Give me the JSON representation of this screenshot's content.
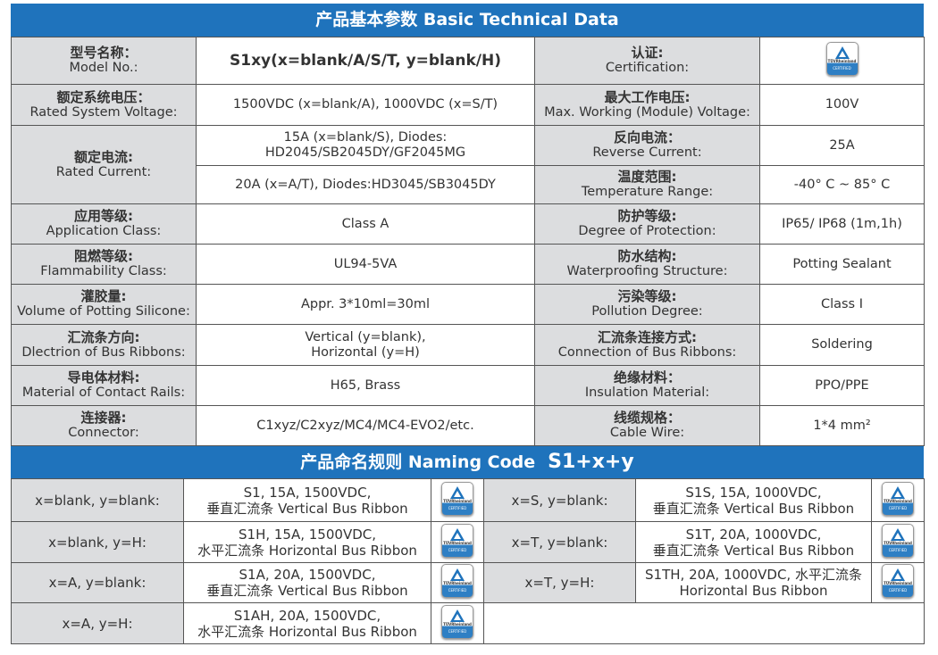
{
  "basic": {
    "title": "产品基本参数 Basic Technical Data",
    "rows": [
      {
        "l1_cn": "型号名称：",
        "l1_en": "Model No.:",
        "v1": "S1xy(x=blank/A/S/T, y=blank/H)",
        "l2_cn": "认证:",
        "l2_en": "Certification:",
        "v2": ""
      },
      {
        "l1_cn": "额定系统电压：",
        "l1_en": "Rated System Voltage:",
        "v1": "1500VDC (x=blank/A), 1000VDC (x=S/T)",
        "l2_cn": "最大工作电压:",
        "l2_en": "Max. Working (Module) Voltage:",
        "v2": "100V"
      },
      {
        "l1_cn": "额定电流:",
        "l1_en": "Rated Current:",
        "v1a": "15A (x=blank/S), Diodes:",
        "v1b": "HD2045/SB2045DY/GF2045MG",
        "l2_cn": "反向电流：",
        "l2_en": "Reverse Current:",
        "v2": "25A"
      },
      {
        "v1": "20A (x=A/T), Diodes:HD3045/SB3045DY",
        "l2_cn": "温度范围:",
        "l2_en": "Temperature Range:",
        "v2": "-40° C ~ 85° C"
      },
      {
        "l1_cn": "应用等级:",
        "l1_en": "Application Class:",
        "v1": "Class A",
        "l2_cn": "防护等级:",
        "l2_en": "Degree of Protection:",
        "v2": "IP65/ IP68 (1m,1h)"
      },
      {
        "l1_cn": "阻燃等级:",
        "l1_en": "Flammability Class:",
        "v1": "UL94-5VA",
        "l2_cn": "防水结构:",
        "l2_en": "Waterproofing Structure:",
        "v2": "Potting Sealant"
      },
      {
        "l1_cn": "灌胶量:",
        "l1_en": "Volume of Potting Silicone:",
        "v1": "Appr. 3*10ml=30ml",
        "l2_cn": "污染等级:",
        "l2_en": "Pollution Degree:",
        "v2": "Class I"
      },
      {
        "l1_cn": "汇流条方向:",
        "l1_en": "Dlectrion of Bus Ribbons:",
        "v1a": "Vertical (y=blank),",
        "v1b": "Horizontal (y=H)",
        "l2_cn": "汇流条连接方式:",
        "l2_en": "Connection of Bus Ribbons:",
        "v2": "Soldering"
      },
      {
        "l1_cn": "导电体材料:",
        "l1_en": "Material of Contact Rails:",
        "v1": "H65, Brass",
        "l2_cn": "绝缘材料：",
        "l2_en": "Insulation Material:",
        "v2": "PPO/PPE"
      },
      {
        "l1_cn": "连接器:",
        "l1_en": "Connector:",
        "v1": "C1xyz/C2xyz/MC4/MC4-EVO2/etc.",
        "l2_cn": "线缆规格：",
        "l2_en": "Cable Wire:",
        "v2": "1*4 mm²"
      }
    ]
  },
  "naming": {
    "title": "产品命名规则 Naming Code",
    "code": "S1+x+y",
    "left": [
      {
        "key": "x=blank, y=blank:",
        "a": "S1, 15A, 1500VDC,",
        "b": "垂直汇流条 Vertical Bus Ribbon"
      },
      {
        "key": "x=blank, y=H:",
        "a": "S1H, 15A, 1500VDC,",
        "b": "水平汇流条 Horizontal Bus Ribbon"
      },
      {
        "key": "x=A, y=blank:",
        "a": "S1A, 20A, 1500VDC,",
        "b": "垂直汇流条 Vertical Bus Ribbon"
      },
      {
        "key": "x=A, y=H:",
        "a": "S1AH, 20A, 1500VDC,",
        "b": "水平汇流条 Horizontal Bus Ribbon"
      }
    ],
    "right": [
      {
        "key": "x=S, y=blank:",
        "a": "S1S, 15A, 1000VDC,",
        "b": "垂直汇流条 Vertical Bus Ribbon"
      },
      {
        "key": "x=T, y=blank:",
        "a": "S1T, 20A, 1000VDC,",
        "b": "垂直汇流条 Vertical Bus Ribbon"
      },
      {
        "key": "x=T, y=H:",
        "a": "S1TH, 20A, 1000VDC, 水平汇流条",
        "b": "Horizontal Bus Ribbon"
      }
    ]
  },
  "badge": {
    "name": "tuv-rheinland-certified-icon",
    "line1": "TÜVRheinland",
    "line2": "CERTIFIED"
  },
  "colors": {
    "header": "#1f73bc",
    "label_bg": "#dcdddf",
    "border": "#555555"
  }
}
